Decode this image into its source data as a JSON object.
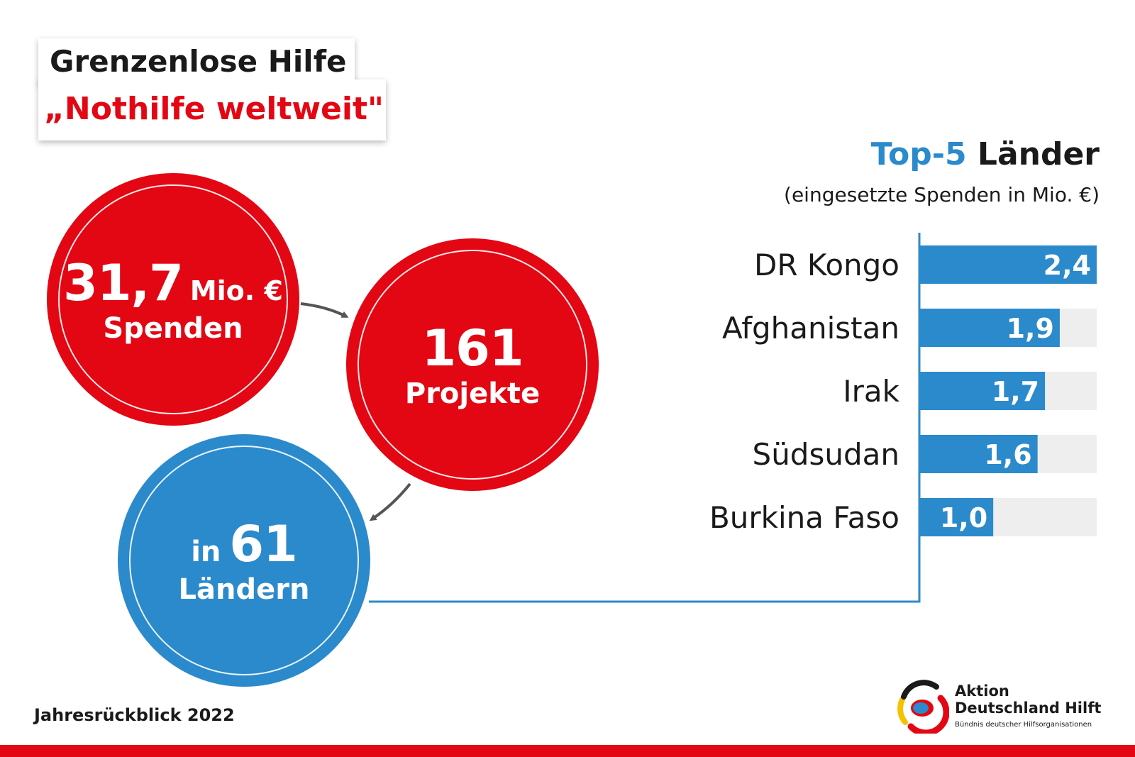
{
  "header": {
    "title_line1": "Grenzenlose Hilfe",
    "title_line2": "„Nothilfe weltweit\""
  },
  "stats": {
    "donations_value": "31,7",
    "donations_unit": "Mio. €",
    "donations_label": "Spenden",
    "projects_value": "161",
    "projects_label": "Projekte",
    "countries_prefix": "in",
    "countries_value": "61",
    "countries_label": "Ländern"
  },
  "colors": {
    "red": "#e30613",
    "blue": "#2b8acb",
    "track": "#eeeeee",
    "arrow": "#555555"
  },
  "chart_data": {
    "type": "bar",
    "orientation": "horizontal",
    "title_highlight": "Top-5",
    "title_rest": "Länder",
    "subtitle": "(eingesetzte Spenden in Mio. €)",
    "categories": [
      "DR Kongo",
      "Afghanistan",
      "Irak",
      "Südsudan",
      "Burkina Faso"
    ],
    "values": [
      2.4,
      1.9,
      1.7,
      1.6,
      1.0
    ],
    "value_labels": [
      "2,4",
      "1,9",
      "1,7",
      "1,6",
      "1,0"
    ],
    "xlim": [
      0,
      2.4
    ],
    "grid": false,
    "legend": "none"
  },
  "footer": {
    "year_review": "Jahresrückblick 2022"
  },
  "logo": {
    "line1": "Aktion",
    "line2": "Deutschland Hilft",
    "tagline": "Bündnis deutscher Hilfsorganisationen"
  }
}
